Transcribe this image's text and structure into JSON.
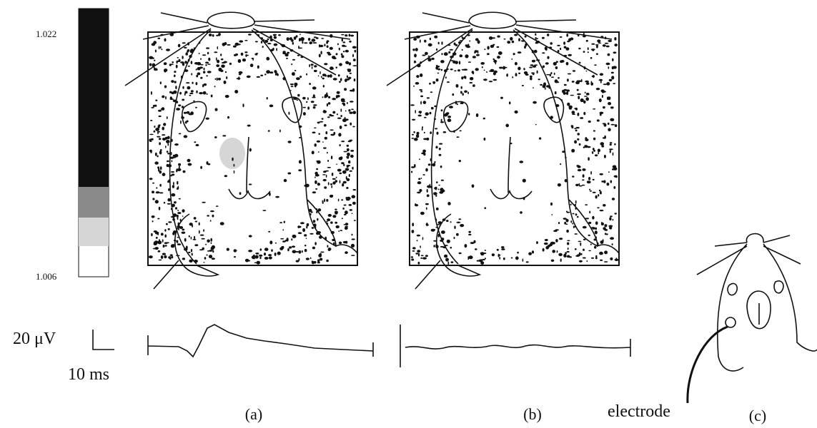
{
  "colorbar": {
    "max_label": "1.022",
    "min_label": "1.006"
  },
  "scale_bar": {
    "voltage": "20 μV",
    "time": "10 ms"
  },
  "panels": [
    {
      "label": "(a)"
    },
    {
      "label": "(b)"
    },
    {
      "label": "(c)",
      "annotation": "electrode"
    }
  ]
}
